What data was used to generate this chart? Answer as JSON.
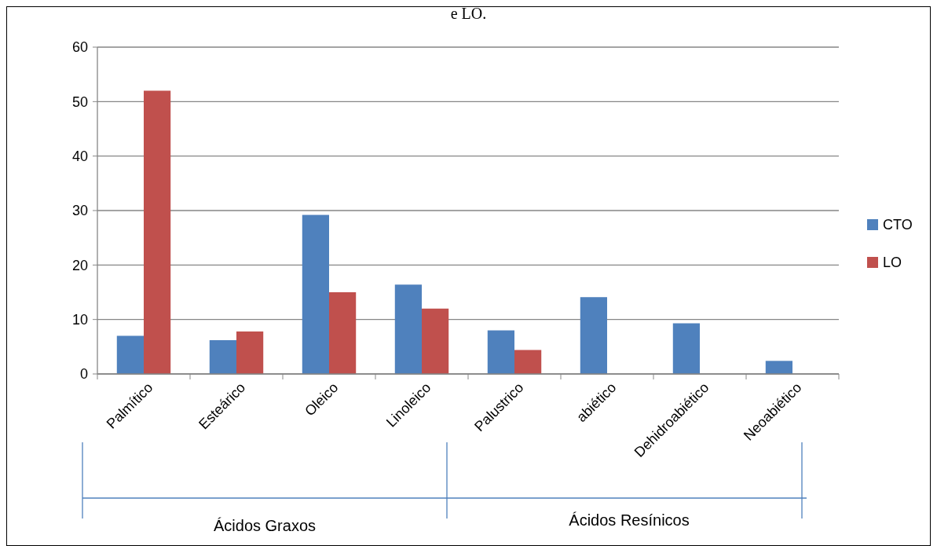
{
  "chart_data": {
    "type": "bar",
    "title": "e LO.",
    "categories": [
      "Palmítico",
      "Esteárico",
      "Oleico",
      "Linoleico",
      "Palustrico",
      "abiético",
      "Dehidroabiético",
      "Neoabiético"
    ],
    "series": [
      {
        "name": "CTO",
        "color": "#4f81bd",
        "values": [
          7,
          6.2,
          29.2,
          16.4,
          8,
          14.1,
          9.3,
          2.4
        ]
      },
      {
        "name": "LO",
        "color": "#c0504d",
        "values": [
          52,
          7.8,
          15,
          12,
          4.4,
          null,
          null,
          null
        ]
      }
    ],
    "ylim": [
      0,
      60
    ],
    "yticks": [
      0,
      10,
      20,
      30,
      40,
      50,
      60
    ],
    "grid": "y",
    "legend": "right",
    "annotations": [
      "Ácidos Graxos",
      "Ácidos Resínicos"
    ]
  }
}
